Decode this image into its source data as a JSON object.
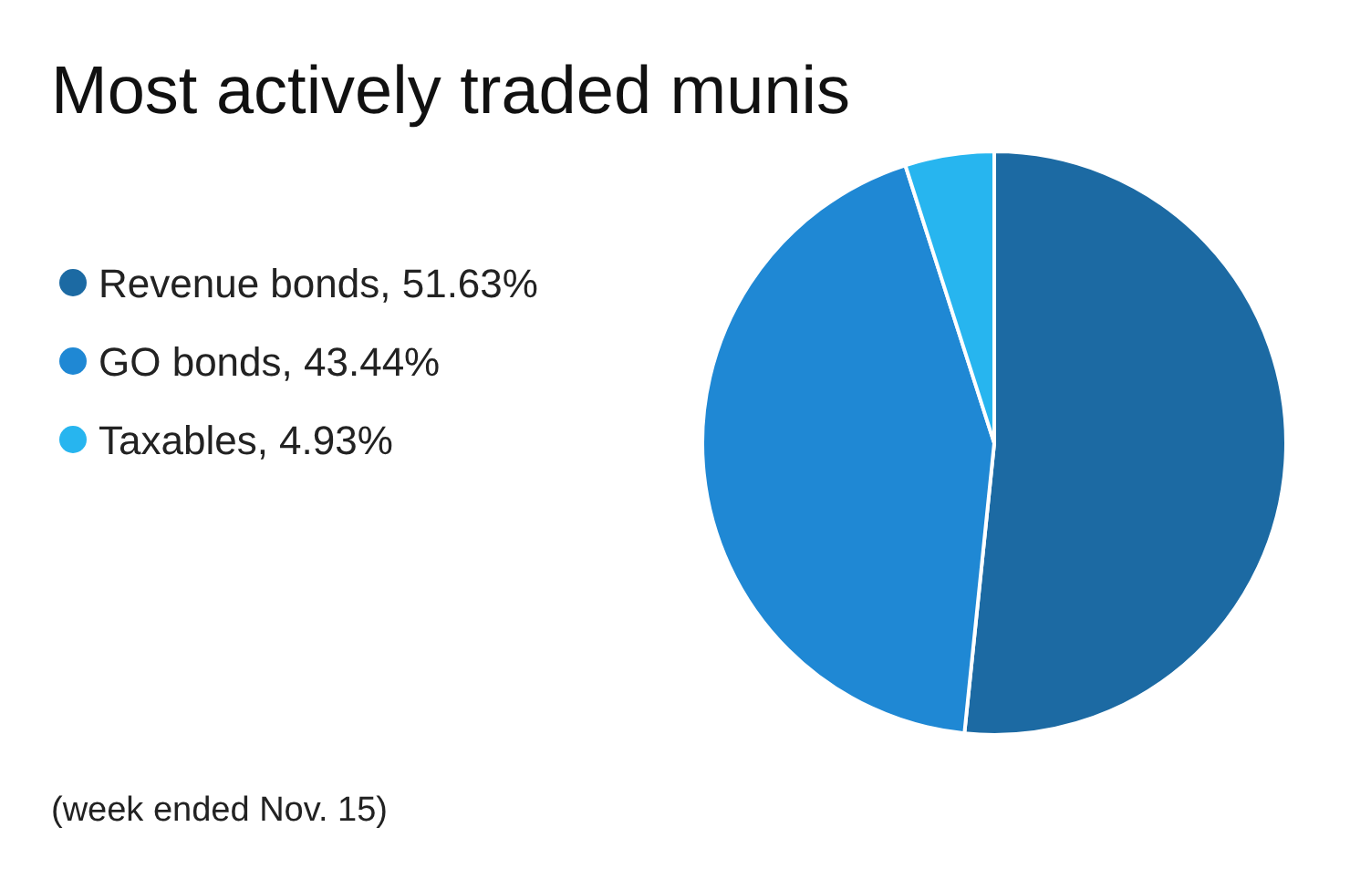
{
  "chart_data": {
    "type": "pie",
    "title": "Most actively traded munis",
    "categories": [
      "Revenue bonds",
      "GO bonds",
      "Taxables"
    ],
    "values": [
      51.63,
      43.44,
      4.93
    ],
    "value_labels": [
      "51.63%",
      "43.44%",
      "4.93%"
    ],
    "colors": [
      "#1c6aa3",
      "#1f88d4",
      "#27b5ef"
    ],
    "legend": "left",
    "annotations": [
      "(week ended Nov. 15)"
    ]
  }
}
